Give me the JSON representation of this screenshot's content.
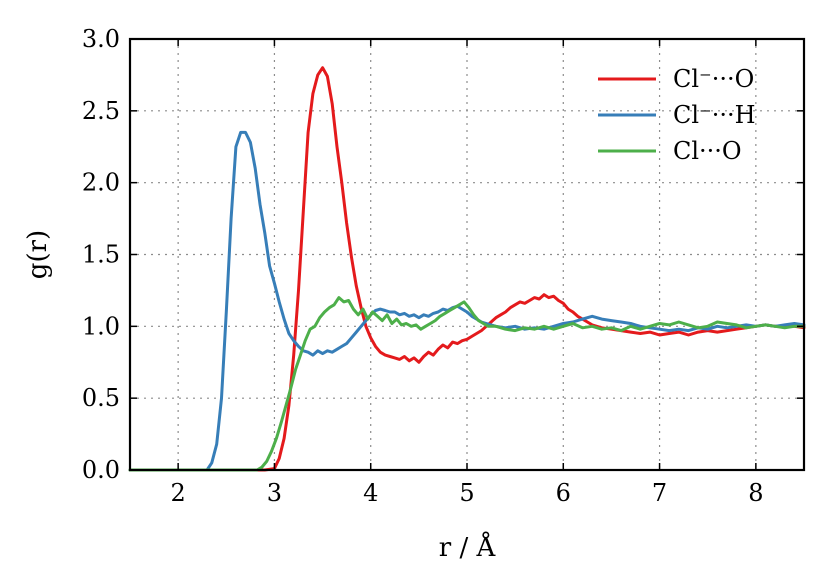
{
  "chart_data": {
    "type": "line",
    "title": "",
    "xlabel": "r / Å",
    "ylabel": "g(r)",
    "xlim": [
      1.5,
      8.5
    ],
    "ylim": [
      0.0,
      3.0
    ],
    "grid": true,
    "legend_position": "top-right",
    "x_ticks": [
      2,
      3,
      4,
      5,
      6,
      7,
      8
    ],
    "x_tick_labels": [
      "2",
      "3",
      "4",
      "5",
      "6",
      "7",
      "8"
    ],
    "y_ticks": [
      0.0,
      0.5,
      1.0,
      1.5,
      2.0,
      2.5,
      3.0
    ],
    "y_tick_labels": [
      "0.0",
      "0.5",
      "1.0",
      "1.5",
      "2.0",
      "2.5",
      "3.0"
    ],
    "series": [
      {
        "name": "Cl⁻···O",
        "color": "#e41a1c",
        "points": [
          [
            1.5,
            0.0
          ],
          [
            2.9,
            0.0
          ],
          [
            3.0,
            0.01
          ],
          [
            3.05,
            0.08
          ],
          [
            3.1,
            0.22
          ],
          [
            3.15,
            0.45
          ],
          [
            3.2,
            0.8
          ],
          [
            3.25,
            1.25
          ],
          [
            3.3,
            1.8
          ],
          [
            3.35,
            2.35
          ],
          [
            3.4,
            2.62
          ],
          [
            3.45,
            2.75
          ],
          [
            3.5,
            2.8
          ],
          [
            3.55,
            2.74
          ],
          [
            3.6,
            2.55
          ],
          [
            3.65,
            2.25
          ],
          [
            3.7,
            2.0
          ],
          [
            3.75,
            1.72
          ],
          [
            3.8,
            1.48
          ],
          [
            3.85,
            1.28
          ],
          [
            3.9,
            1.13
          ],
          [
            3.95,
            1.0
          ],
          [
            4.0,
            0.92
          ],
          [
            4.05,
            0.86
          ],
          [
            4.1,
            0.82
          ],
          [
            4.15,
            0.8
          ],
          [
            4.2,
            0.79
          ],
          [
            4.25,
            0.78
          ],
          [
            4.3,
            0.77
          ],
          [
            4.35,
            0.79
          ],
          [
            4.4,
            0.76
          ],
          [
            4.45,
            0.78
          ],
          [
            4.5,
            0.75
          ],
          [
            4.55,
            0.79
          ],
          [
            4.6,
            0.82
          ],
          [
            4.65,
            0.8
          ],
          [
            4.7,
            0.84
          ],
          [
            4.75,
            0.87
          ],
          [
            4.8,
            0.85
          ],
          [
            4.85,
            0.89
          ],
          [
            4.9,
            0.88
          ],
          [
            4.95,
            0.9
          ],
          [
            5.0,
            0.91
          ],
          [
            5.05,
            0.93
          ],
          [
            5.1,
            0.95
          ],
          [
            5.15,
            0.97
          ],
          [
            5.2,
            1.0
          ],
          [
            5.25,
            1.03
          ],
          [
            5.3,
            1.06
          ],
          [
            5.35,
            1.08
          ],
          [
            5.4,
            1.1
          ],
          [
            5.45,
            1.13
          ],
          [
            5.5,
            1.15
          ],
          [
            5.55,
            1.17
          ],
          [
            5.6,
            1.16
          ],
          [
            5.65,
            1.18
          ],
          [
            5.7,
            1.2
          ],
          [
            5.75,
            1.19
          ],
          [
            5.8,
            1.22
          ],
          [
            5.85,
            1.2
          ],
          [
            5.9,
            1.21
          ],
          [
            5.95,
            1.18
          ],
          [
            6.0,
            1.16
          ],
          [
            6.05,
            1.12
          ],
          [
            6.1,
            1.1
          ],
          [
            6.15,
            1.07
          ],
          [
            6.2,
            1.05
          ],
          [
            6.25,
            1.03
          ],
          [
            6.3,
            1.01
          ],
          [
            6.4,
            0.99
          ],
          [
            6.5,
            0.98
          ],
          [
            6.6,
            0.97
          ],
          [
            6.7,
            0.96
          ],
          [
            6.8,
            0.95
          ],
          [
            6.9,
            0.96
          ],
          [
            7.0,
            0.94
          ],
          [
            7.1,
            0.95
          ],
          [
            7.2,
            0.96
          ],
          [
            7.3,
            0.94
          ],
          [
            7.4,
            0.96
          ],
          [
            7.5,
            0.97
          ],
          [
            7.6,
            0.96
          ],
          [
            7.7,
            0.97
          ],
          [
            7.8,
            0.98
          ],
          [
            7.9,
            0.99
          ],
          [
            8.0,
            1.0
          ],
          [
            8.1,
            1.01
          ],
          [
            8.2,
            1.0
          ],
          [
            8.3,
            1.0
          ],
          [
            8.4,
            1.0
          ],
          [
            8.5,
            0.99
          ]
        ]
      },
      {
        "name": "Cl⁻···H",
        "color": "#377eb8",
        "points": [
          [
            1.5,
            0.0
          ],
          [
            2.3,
            0.0
          ],
          [
            2.35,
            0.05
          ],
          [
            2.4,
            0.18
          ],
          [
            2.45,
            0.5
          ],
          [
            2.5,
            1.1
          ],
          [
            2.55,
            1.75
          ],
          [
            2.6,
            2.25
          ],
          [
            2.65,
            2.35
          ],
          [
            2.7,
            2.35
          ],
          [
            2.75,
            2.28
          ],
          [
            2.8,
            2.1
          ],
          [
            2.85,
            1.85
          ],
          [
            2.9,
            1.65
          ],
          [
            2.95,
            1.42
          ],
          [
            3.0,
            1.3
          ],
          [
            3.05,
            1.17
          ],
          [
            3.1,
            1.05
          ],
          [
            3.15,
            0.95
          ],
          [
            3.2,
            0.9
          ],
          [
            3.25,
            0.86
          ],
          [
            3.3,
            0.83
          ],
          [
            3.35,
            0.82
          ],
          [
            3.4,
            0.8
          ],
          [
            3.45,
            0.83
          ],
          [
            3.5,
            0.81
          ],
          [
            3.55,
            0.83
          ],
          [
            3.6,
            0.82
          ],
          [
            3.65,
            0.84
          ],
          [
            3.7,
            0.86
          ],
          [
            3.75,
            0.88
          ],
          [
            3.8,
            0.92
          ],
          [
            3.85,
            0.96
          ],
          [
            3.9,
            1.0
          ],
          [
            3.95,
            1.04
          ],
          [
            4.0,
            1.08
          ],
          [
            4.05,
            1.11
          ],
          [
            4.1,
            1.12
          ],
          [
            4.15,
            1.11
          ],
          [
            4.2,
            1.1
          ],
          [
            4.25,
            1.1
          ],
          [
            4.3,
            1.08
          ],
          [
            4.35,
            1.09
          ],
          [
            4.4,
            1.07
          ],
          [
            4.45,
            1.08
          ],
          [
            4.5,
            1.06
          ],
          [
            4.55,
            1.08
          ],
          [
            4.6,
            1.07
          ],
          [
            4.65,
            1.09
          ],
          [
            4.7,
            1.1
          ],
          [
            4.75,
            1.12
          ],
          [
            4.8,
            1.11
          ],
          [
            4.85,
            1.13
          ],
          [
            4.9,
            1.14
          ],
          [
            4.95,
            1.12
          ],
          [
            5.0,
            1.1
          ],
          [
            5.05,
            1.07
          ],
          [
            5.1,
            1.05
          ],
          [
            5.15,
            1.03
          ],
          [
            5.2,
            1.02
          ],
          [
            5.3,
            1.0
          ],
          [
            5.4,
            0.99
          ],
          [
            5.5,
            1.0
          ],
          [
            5.6,
            0.98
          ],
          [
            5.7,
            0.99
          ],
          [
            5.8,
            0.98
          ],
          [
            5.9,
            1.0
          ],
          [
            6.0,
            1.02
          ],
          [
            6.1,
            1.03
          ],
          [
            6.2,
            1.05
          ],
          [
            6.3,
            1.07
          ],
          [
            6.4,
            1.05
          ],
          [
            6.5,
            1.04
          ],
          [
            6.6,
            1.03
          ],
          [
            6.7,
            1.02
          ],
          [
            6.8,
            1.0
          ],
          [
            6.9,
            0.99
          ],
          [
            7.0,
            0.98
          ],
          [
            7.1,
            0.97
          ],
          [
            7.2,
            0.98
          ],
          [
            7.3,
            0.97
          ],
          [
            7.4,
            0.99
          ],
          [
            7.5,
            0.98
          ],
          [
            7.6,
            1.0
          ],
          [
            7.7,
            0.99
          ],
          [
            7.8,
            1.0
          ],
          [
            7.9,
            1.01
          ],
          [
            8.0,
            1.0
          ],
          [
            8.1,
            1.01
          ],
          [
            8.2,
            1.0
          ],
          [
            8.3,
            1.01
          ],
          [
            8.4,
            1.02
          ],
          [
            8.5,
            1.01
          ]
        ]
      },
      {
        "name": "Cl···O",
        "color": "#4daf4a",
        "points": [
          [
            1.5,
            0.0
          ],
          [
            2.82,
            0.0
          ],
          [
            2.87,
            0.02
          ],
          [
            2.92,
            0.06
          ],
          [
            2.97,
            0.13
          ],
          [
            3.02,
            0.22
          ],
          [
            3.07,
            0.33
          ],
          [
            3.12,
            0.45
          ],
          [
            3.17,
            0.57
          ],
          [
            3.22,
            0.7
          ],
          [
            3.27,
            0.8
          ],
          [
            3.32,
            0.9
          ],
          [
            3.37,
            0.98
          ],
          [
            3.42,
            1.0
          ],
          [
            3.47,
            1.06
          ],
          [
            3.52,
            1.1
          ],
          [
            3.57,
            1.13
          ],
          [
            3.62,
            1.15
          ],
          [
            3.67,
            1.2
          ],
          [
            3.72,
            1.17
          ],
          [
            3.77,
            1.18
          ],
          [
            3.82,
            1.12
          ],
          [
            3.87,
            1.08
          ],
          [
            3.92,
            1.12
          ],
          [
            3.97,
            1.05
          ],
          [
            4.02,
            1.1
          ],
          [
            4.07,
            1.07
          ],
          [
            4.12,
            1.04
          ],
          [
            4.17,
            1.08
          ],
          [
            4.22,
            1.02
          ],
          [
            4.27,
            1.05
          ],
          [
            4.32,
            1.01
          ],
          [
            4.37,
            1.02
          ],
          [
            4.42,
            1.0
          ],
          [
            4.47,
            1.01
          ],
          [
            4.52,
            0.98
          ],
          [
            4.57,
            1.0
          ],
          [
            4.62,
            1.02
          ],
          [
            4.67,
            1.04
          ],
          [
            4.72,
            1.07
          ],
          [
            4.77,
            1.09
          ],
          [
            4.82,
            1.11
          ],
          [
            4.87,
            1.13
          ],
          [
            4.92,
            1.15
          ],
          [
            4.97,
            1.17
          ],
          [
            5.02,
            1.13
          ],
          [
            5.07,
            1.08
          ],
          [
            5.12,
            1.04
          ],
          [
            5.17,
            1.02
          ],
          [
            5.22,
            1.0
          ],
          [
            5.3,
            1.0
          ],
          [
            5.4,
            0.98
          ],
          [
            5.5,
            0.97
          ],
          [
            5.6,
            0.99
          ],
          [
            5.7,
            0.98
          ],
          [
            5.8,
            1.0
          ],
          [
            5.9,
            0.98
          ],
          [
            6.0,
            1.0
          ],
          [
            6.1,
            1.02
          ],
          [
            6.2,
            0.99
          ],
          [
            6.3,
            1.0
          ],
          [
            6.4,
            0.98
          ],
          [
            6.5,
            0.99
          ],
          [
            6.6,
            0.97
          ],
          [
            6.7,
            1.0
          ],
          [
            6.8,
            0.98
          ],
          [
            6.9,
            1.0
          ],
          [
            7.0,
            1.02
          ],
          [
            7.1,
            1.01
          ],
          [
            7.2,
            1.03
          ],
          [
            7.3,
            1.01
          ],
          [
            7.4,
            0.99
          ],
          [
            7.5,
            1.0
          ],
          [
            7.6,
            1.03
          ],
          [
            7.7,
            1.02
          ],
          [
            7.8,
            1.01
          ],
          [
            7.9,
            0.99
          ],
          [
            8.0,
            1.0
          ],
          [
            8.1,
            1.01
          ],
          [
            8.2,
            1.0
          ],
          [
            8.3,
            0.99
          ],
          [
            8.4,
            1.0
          ],
          [
            8.5,
            1.0
          ]
        ]
      }
    ]
  }
}
